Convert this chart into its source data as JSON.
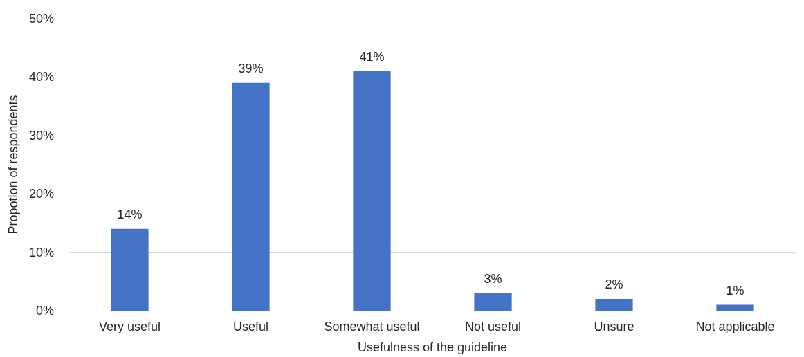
{
  "chart_data": {
    "type": "bar",
    "xlabel": "Usefulness of the guideline",
    "ylabel": "Propotion of respondents",
    "categories": [
      "Very useful",
      "Useful",
      "Somewhat useful",
      "Not useful",
      "Unsure",
      "Not applicable"
    ],
    "values": [
      14,
      39,
      41,
      3,
      2,
      1
    ],
    "value_labels": [
      "14%",
      "39%",
      "41%",
      "3%",
      "2%",
      "1%"
    ],
    "color": "#4472c4",
    "ylim": [
      0,
      50
    ],
    "yticks": [
      {
        "value": 0,
        "label": "0%"
      },
      {
        "value": 10,
        "label": "10%"
      },
      {
        "value": 20,
        "label": "20%"
      },
      {
        "value": 30,
        "label": "30%"
      },
      {
        "value": 40,
        "label": "40%"
      },
      {
        "value": 50,
        "label": "50%"
      }
    ],
    "grid": "y"
  }
}
